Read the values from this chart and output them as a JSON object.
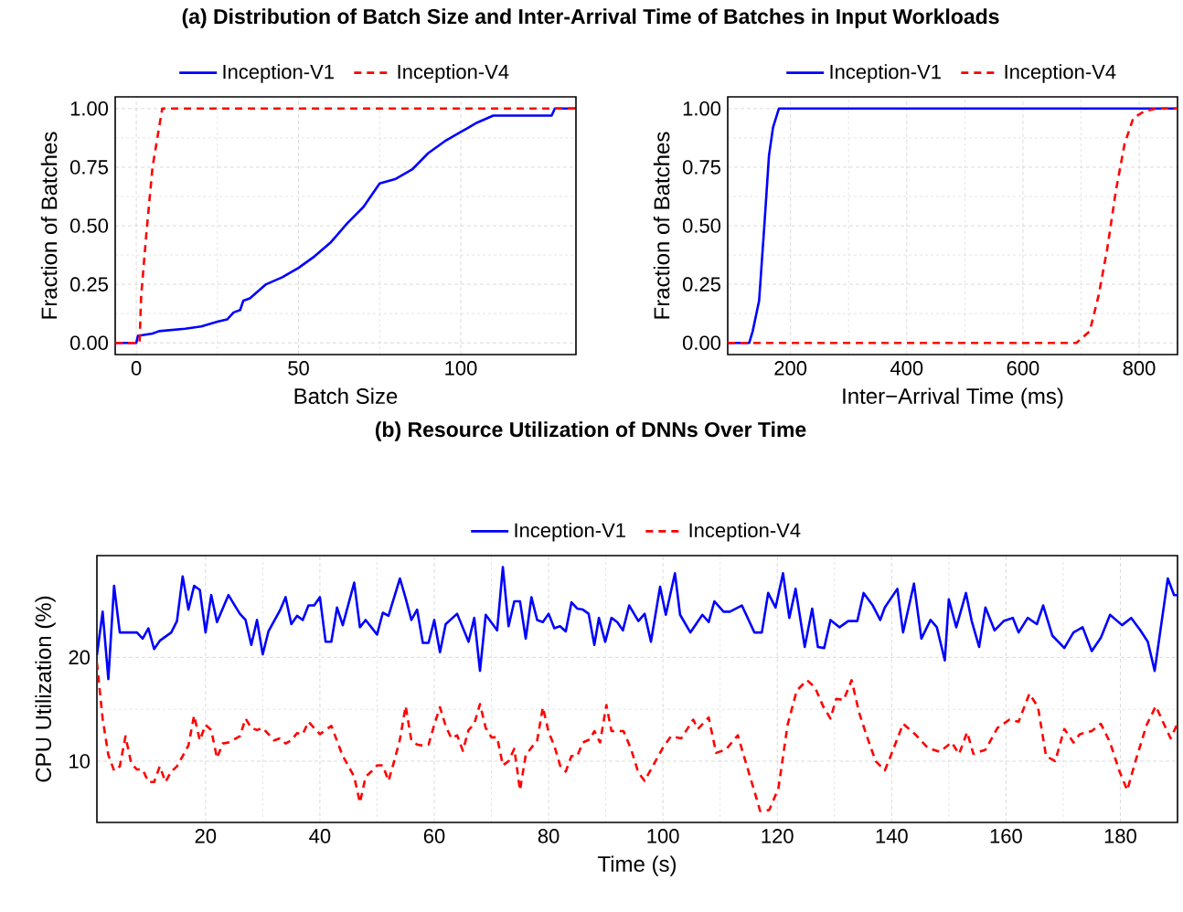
{
  "chart_data": [
    {
      "type": "line",
      "title": "(a) Distribution of Batch Size and Inter-Arrival Time of Batches in Input Workloads",
      "xlabel": "Batch Size",
      "ylabel": "Fraction of Batches",
      "legend": "top",
      "grid": true,
      "xlim": [
        -6.5,
        135.5
      ],
      "xticks": [
        0,
        50,
        100
      ],
      "ylim": [
        -0.05,
        1.05
      ],
      "yticks": [
        {
          "value": 0,
          "label": "0.00"
        },
        {
          "value": 0.25,
          "label": "0.25"
        },
        {
          "value": 0.5,
          "label": "0.50"
        },
        {
          "value": 0.75,
          "label": "0.75"
        },
        {
          "value": 1,
          "label": "1.00"
        }
      ],
      "series": [
        {
          "name": "Inception-V1",
          "color": "#0000ff",
          "line_style": "solid",
          "x": [
            -6.5,
            0,
            0.5,
            5,
            7,
            15,
            20,
            25,
            28,
            30,
            32,
            33,
            35,
            40,
            45,
            50,
            55,
            60,
            65,
            70,
            75,
            80,
            85,
            90,
            95,
            100,
            105,
            110,
            128,
            129,
            135.5
          ],
          "values": [
            0,
            0,
            0.03,
            0.04,
            0.05,
            0.06,
            0.07,
            0.09,
            0.1,
            0.13,
            0.14,
            0.18,
            0.19,
            0.25,
            0.28,
            0.32,
            0.37,
            0.43,
            0.51,
            0.58,
            0.68,
            0.7,
            0.74,
            0.81,
            0.86,
            0.9,
            0.94,
            0.97,
            0.97,
            1,
            1
          ]
        },
        {
          "name": "Inception-V4",
          "color": "#ff0000",
          "line_style": "dashed",
          "x": [
            -6.5,
            1,
            1.5,
            3,
            5,
            8,
            135.5
          ],
          "values": [
            0,
            0,
            0.2,
            0.45,
            0.75,
            1,
            1
          ]
        }
      ]
    },
    {
      "type": "line",
      "xlabel": "Inter−Arrival Time (ms)",
      "ylabel": "Fraction of Batches",
      "legend": "top",
      "grid": true,
      "xlim": [
        92,
        866
      ],
      "xticks": [
        200,
        400,
        600,
        800
      ],
      "ylim": [
        -0.05,
        1.05
      ],
      "yticks": [
        {
          "value": 0,
          "label": "0.00"
        },
        {
          "value": 0.25,
          "label": "0.25"
        },
        {
          "value": 0.5,
          "label": "0.50"
        },
        {
          "value": 0.75,
          "label": "0.75"
        },
        {
          "value": 1,
          "label": "1.00"
        }
      ],
      "series": [
        {
          "name": "Inception-V1",
          "color": "#0000ff",
          "line_style": "solid",
          "x": [
            92,
            129,
            135,
            146,
            155,
            163,
            170,
            180,
            866
          ],
          "values": [
            0,
            0,
            0.05,
            0.18,
            0.5,
            0.8,
            0.92,
            1,
            1
          ]
        },
        {
          "name": "Inception-V4",
          "color": "#ff0000",
          "line_style": "dashed",
          "x": [
            92,
            692,
            715,
            730,
            745,
            760,
            775,
            790,
            810,
            830,
            866
          ],
          "values": [
            0,
            0,
            0.05,
            0.2,
            0.4,
            0.65,
            0.85,
            0.96,
            0.99,
            1,
            1
          ]
        }
      ]
    },
    {
      "type": "line",
      "title": "(b) Resource Utilization of DNNs Over Time",
      "xlabel": "Time (s)",
      "ylabel": "CPU Utilization (%)",
      "legend": "top",
      "grid": true,
      "xlim": [
        1,
        190
      ],
      "xticks": [
        20,
        40,
        60,
        80,
        100,
        120,
        140,
        160,
        180
      ],
      "ylim": [
        4.1,
        29.8
      ],
      "yticks": [
        10,
        20
      ],
      "series": [
        {
          "name": "Inception-V1",
          "color": "#0000ff",
          "line_style": "solid",
          "x": [
            1,
            2,
            3,
            4,
            5,
            8,
            9,
            10,
            11,
            12,
            14,
            15,
            16,
            17,
            18,
            19,
            20,
            21,
            22,
            24,
            26,
            27,
            28,
            29,
            30,
            31,
            33,
            34,
            35,
            36,
            37,
            38,
            39,
            40,
            41,
            42,
            43,
            44,
            46,
            47,
            48,
            50,
            51,
            52,
            54,
            55,
            56,
            57,
            58,
            59,
            60,
            61,
            62,
            64,
            66,
            67,
            68,
            69,
            71,
            72,
            73,
            74,
            75,
            76,
            77,
            78,
            79,
            80,
            81,
            82,
            83,
            84,
            85,
            86,
            87,
            88,
            88.8,
            89.9,
            91,
            92,
            93,
            94.1,
            95.7,
            96.8,
            97.9,
            99.5,
            100.5,
            102.1,
            103,
            104.8,
            106.9,
            108,
            109,
            110.6,
            111.7,
            113.8,
            116,
            117.3,
            118.4,
            119.7,
            121,
            122.1,
            123.2,
            124.8,
            126.1,
            127.1,
            128.2,
            129.3,
            130.9,
            132.4,
            134,
            135.1,
            136.7,
            138,
            138.8,
            141,
            142,
            143.9,
            145.2,
            146.8,
            147.9,
            149.3,
            150,
            151.3,
            153,
            154,
            155.3,
            156.4,
            158,
            159.6,
            161.2,
            162.2,
            163.8,
            165.4,
            166.5,
            168.1,
            170.2,
            171.8,
            173.4,
            175,
            176.6,
            178.2,
            180.3,
            181.9,
            183.5,
            184.8,
            186,
            188.3,
            189.4,
            190
          ],
          "values": [
            20.2,
            24.4,
            17.9,
            26.9,
            22.4,
            22.4,
            21.8,
            22.8,
            20.8,
            21.6,
            22.4,
            23.5,
            27.8,
            24.6,
            26.9,
            26.5,
            22.4,
            26,
            23.4,
            26,
            24.2,
            23.6,
            21.2,
            23.6,
            20.3,
            22.5,
            24.5,
            25.8,
            23.2,
            24,
            23.6,
            25,
            25,
            25.8,
            21.5,
            21.5,
            24.8,
            23.1,
            27.2,
            22.9,
            23.6,
            22.2,
            24.3,
            24,
            27.6,
            25.7,
            23.6,
            24.6,
            21.4,
            21.4,
            23.6,
            20.5,
            23.2,
            24.2,
            21.5,
            23.8,
            18.7,
            24.1,
            22.6,
            28.7,
            23,
            25.4,
            25.4,
            21.8,
            25.8,
            23.6,
            23.4,
            24.2,
            22.8,
            23,
            22.5,
            25.3,
            24.7,
            24.6,
            24.2,
            21.2,
            23.8,
            21.5,
            23.8,
            23.4,
            22.6,
            25,
            23.5,
            24.2,
            21.5,
            26.8,
            24.1,
            28.1,
            24.1,
            22.4,
            24.1,
            23.4,
            25.4,
            24.4,
            24.4,
            25,
            22.4,
            22.4,
            26.2,
            24.8,
            28.1,
            23.8,
            26.6,
            21,
            24.7,
            21,
            20.9,
            23.6,
            22.9,
            23.5,
            23.5,
            26.2,
            25,
            23.6,
            24.8,
            26.6,
            22.4,
            27.1,
            21.8,
            23.6,
            22.9,
            19.7,
            25.6,
            22.9,
            26.2,
            23.5,
            21,
            24.8,
            22.6,
            23.5,
            23.8,
            22.4,
            23.8,
            23.2,
            25,
            22.1,
            20.9,
            22.4,
            22.9,
            20.6,
            21.9,
            24.1,
            23.1,
            23.8,
            22.6,
            21.5,
            18.7,
            27.6,
            26,
            26
          ]
        },
        {
          "name": "Inception-V4",
          "color": "#ff0000",
          "line_style": "dashed",
          "x": [
            1,
            2,
            3,
            4,
            5,
            6,
            7,
            8,
            9,
            10,
            11,
            12,
            13,
            14,
            15,
            16,
            17,
            18,
            19,
            20,
            21,
            22,
            23,
            24,
            26,
            27,
            28,
            29,
            30,
            32,
            33,
            34,
            35,
            36,
            37,
            38,
            39,
            40,
            41,
            42,
            44,
            45,
            46,
            47,
            48,
            49,
            50,
            51,
            52,
            53,
            54,
            55,
            56,
            57,
            58,
            59,
            60,
            61,
            62,
            63,
            64,
            65,
            66,
            67,
            68,
            69,
            70,
            71,
            72,
            73,
            74,
            75,
            76,
            78,
            79,
            80,
            81,
            82,
            83,
            84,
            85,
            86,
            87.2,
            88,
            89,
            90.1,
            91,
            93.1,
            94.4,
            95.7,
            96.8,
            98.4,
            100,
            101.4,
            103.2,
            105.3,
            106.1,
            108,
            109.3,
            111,
            113.1,
            114.1,
            116,
            117,
            118.6,
            120.2,
            121.8,
            123.4,
            125.2,
            126.6,
            128,
            129.3,
            130.3,
            131.6,
            133,
            134.3,
            135.6,
            137.2,
            138.8,
            139.9,
            142,
            144.1,
            146.3,
            148.4,
            150.5,
            151.8,
            153.2,
            154.3,
            156.4,
            158.5,
            160.6,
            162.2,
            164.1,
            165.6,
            167,
            168.6,
            170.2,
            171.8,
            172.9,
            175,
            176.6,
            178.2,
            179.8,
            181.2,
            182.7,
            184.6,
            186.2,
            187.6,
            188.8,
            189.9
          ],
          "values": [
            19.5,
            14.1,
            10.6,
            9.1,
            9.5,
            12.4,
            9.8,
            9.2,
            9.2,
            8,
            8,
            9.5,
            8,
            9,
            9.5,
            10.5,
            11.5,
            14.4,
            12,
            13.5,
            13,
            10.3,
            11.7,
            11.8,
            12.4,
            14.1,
            13.2,
            13,
            13.2,
            12,
            12.2,
            11.7,
            12,
            12.7,
            12.6,
            13.8,
            13.2,
            12.6,
            13,
            13.4,
            10.5,
            9.5,
            8.5,
            6,
            8.5,
            9,
            9.6,
            9.6,
            8.1,
            10,
            12.1,
            15.3,
            12,
            11.6,
            11.5,
            11.6,
            13.5,
            15.2,
            13.4,
            12.2,
            12.5,
            11,
            13,
            13.6,
            15.5,
            13.2,
            12.3,
            12.3,
            9.6,
            10,
            11.2,
            7.2,
            10.6,
            12,
            15.2,
            12.8,
            11.5,
            9.6,
            9,
            10.5,
            10.5,
            11.8,
            12.1,
            12.9,
            11.8,
            15.4,
            12.9,
            12.9,
            11.2,
            8.9,
            8.1,
            9.7,
            11.3,
            12.4,
            12.2,
            14,
            13.1,
            14.2,
            10.8,
            11.1,
            12.5,
            10.6,
            7.1,
            5.2,
            5.3,
            7.4,
            13.5,
            16.8,
            17.8,
            17.1,
            15.3,
            14.1,
            16,
            15.9,
            17.8,
            14.7,
            12.5,
            10,
            9.1,
            10.6,
            13.6,
            12.6,
            11.3,
            10.9,
            11.8,
            10.7,
            12.8,
            10.7,
            11.1,
            13.2,
            14,
            13.8,
            16.5,
            15.2,
            10.5,
            10,
            13.1,
            11.8,
            12.6,
            12.9,
            13.6,
            11.8,
            9.1,
            7.2,
            10.1,
            13.5,
            15.3,
            13.6,
            12.2,
            13.5
          ]
        }
      ]
    }
  ]
}
